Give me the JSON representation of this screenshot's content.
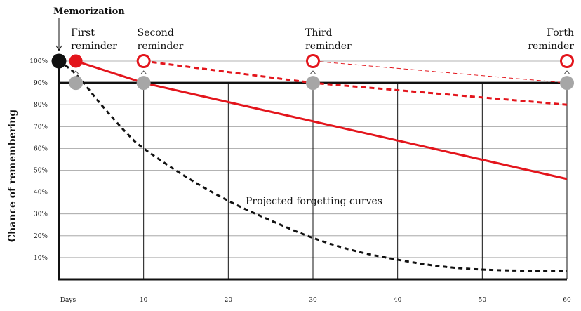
{
  "chart_data": {
    "type": "line",
    "title": "Memorization",
    "ylabel": "Chance of remembering",
    "xlabel": "Days",
    "x_ticks": [
      10,
      20,
      30,
      40,
      50,
      60
    ],
    "y_ticks": [
      {
        "value": 100,
        "label": "100%"
      },
      {
        "value": 90,
        "label": "90%"
      },
      {
        "value": 80,
        "label": "80%"
      },
      {
        "value": 70,
        "label": "70%"
      },
      {
        "value": 60,
        "label": "60%"
      },
      {
        "value": 50,
        "label": "50%"
      },
      {
        "value": 40,
        "label": "40%"
      },
      {
        "value": 30,
        "label": "30%"
      },
      {
        "value": 20,
        "label": "20%"
      },
      {
        "value": 10,
        "label": "10%"
      }
    ],
    "xlim": [
      0,
      60
    ],
    "ylim": [
      0,
      100
    ],
    "threshold": 90,
    "annotation": "Projected forgetting curves",
    "reminders": [
      {
        "lines": [
          "First",
          "reminder"
        ],
        "day": 2
      },
      {
        "lines": [
          "Second",
          "reminder"
        ],
        "day": 10
      },
      {
        "lines": [
          "Third",
          "reminder"
        ],
        "day": 30
      },
      {
        "lines": [
          "Forth",
          "reminder"
        ],
        "day": 60
      }
    ],
    "series": [
      {
        "style": "black-dashed",
        "points": [
          [
            0,
            100
          ],
          [
            2,
            94
          ],
          [
            5,
            80
          ],
          [
            8,
            67
          ],
          [
            10,
            60
          ],
          [
            15,
            47
          ],
          [
            20,
            36
          ],
          [
            25,
            27
          ],
          [
            30,
            19
          ],
          [
            35,
            13
          ],
          [
            40,
            9
          ],
          [
            45,
            6
          ],
          [
            50,
            4.5
          ],
          [
            55,
            4
          ],
          [
            60,
            4
          ]
        ]
      },
      {
        "style": "red-solid",
        "points": [
          [
            2,
            100
          ],
          [
            10,
            90
          ],
          [
            60,
            46
          ]
        ]
      },
      {
        "style": "red-dashed-thick",
        "points": [
          [
            10,
            100
          ],
          [
            30,
            90
          ],
          [
            60,
            80
          ]
        ]
      },
      {
        "style": "red-dashed-thin",
        "points": [
          [
            30,
            100
          ],
          [
            60,
            90
          ]
        ]
      }
    ],
    "colors": {
      "accent": "#e3151c",
      "marker_gray": "#a6a6a6",
      "ink": "#111111"
    }
  }
}
